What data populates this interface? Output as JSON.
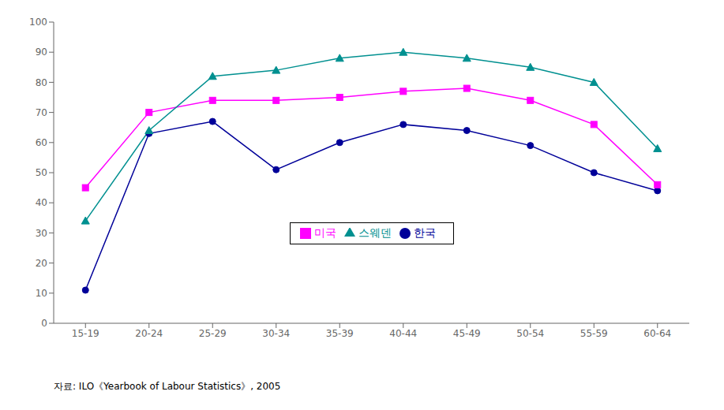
{
  "chart_data": {
    "type": "line",
    "categories": [
      "15-19",
      "20-24",
      "25-29",
      "30-34",
      "35-39",
      "40-44",
      "45-49",
      "50-54",
      "55-59",
      "60-64"
    ],
    "series": [
      {
        "name": "한국",
        "color": "#000099",
        "marker": "circle",
        "values": [
          11,
          63,
          67,
          51,
          60,
          66,
          64,
          59,
          50,
          44
        ]
      },
      {
        "name": "미국",
        "color": "#FF00FF",
        "marker": "square",
        "values": [
          45,
          70,
          74,
          74,
          75,
          77,
          78,
          74,
          66,
          46
        ]
      },
      {
        "name": "스웨덴",
        "color": "#009090",
        "marker": "triangle",
        "values": [
          34,
          64,
          82,
          84,
          88,
          90,
          88,
          85,
          80,
          58
        ]
      }
    ],
    "ylim": [
      0,
      100
    ],
    "yticks": [
      0,
      10,
      20,
      30,
      40,
      50,
      60,
      70,
      80,
      90,
      100
    ],
    "grid": false,
    "legend": "bottom",
    "annotation": "자료: ILO《Yearbook of Labour Statistics》, 2005"
  }
}
